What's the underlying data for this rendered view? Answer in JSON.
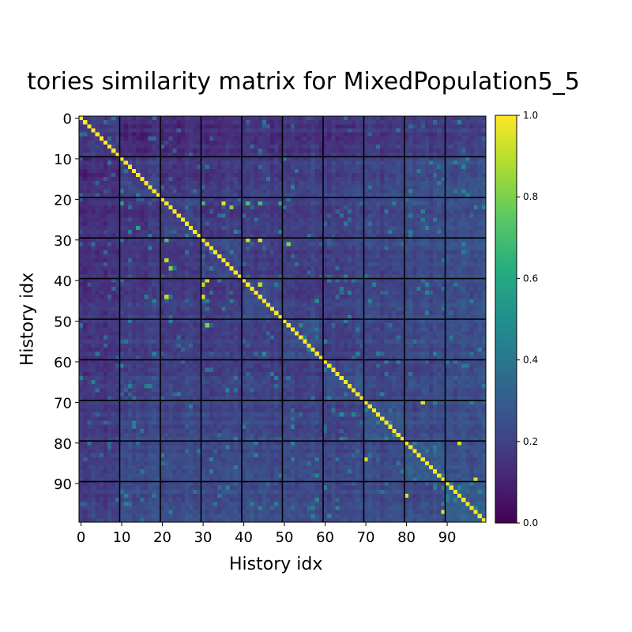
{
  "chart_data": {
    "type": "heatmap",
    "title": "tories similarity matrix for MixedPopulation5_5",
    "xlabel": "History idx",
    "ylabel": "History idx",
    "rows": 100,
    "cols": 100,
    "block_size": 10,
    "x_ticks": [
      0,
      10,
      20,
      30,
      40,
      50,
      60,
      70,
      80,
      90
    ],
    "y_ticks": [
      0,
      10,
      20,
      30,
      40,
      50,
      60,
      70,
      80,
      90
    ],
    "colorbar": {
      "min": 0.0,
      "max": 1.0,
      "ticks": [
        "0.0",
        "0.2",
        "0.4",
        "0.6",
        "0.8",
        "1.0"
      ],
      "colormap": "viridis"
    },
    "diagonal_value": 1.0,
    "typical_offdiagonal_range": [
      0.05,
      0.3
    ],
    "notable_cells": [
      {
        "row": 21,
        "col": 10,
        "value": 0.6
      },
      {
        "row": 21,
        "col": 30,
        "value": 0.7
      },
      {
        "row": 21,
        "col": 35,
        "value": 0.95
      },
      {
        "row": 22,
        "col": 37,
        "value": 0.8
      },
      {
        "row": 21,
        "col": 41,
        "value": 0.7
      },
      {
        "row": 21,
        "col": 44,
        "value": 0.7
      },
      {
        "row": 21,
        "col": 49,
        "value": 0.6
      },
      {
        "row": 27,
        "col": 14,
        "value": 0.6
      },
      {
        "row": 30,
        "col": 21,
        "value": 0.7
      },
      {
        "row": 30,
        "col": 41,
        "value": 0.9
      },
      {
        "row": 30,
        "col": 44,
        "value": 0.95
      },
      {
        "row": 31,
        "col": 51,
        "value": 0.8
      },
      {
        "row": 35,
        "col": 21,
        "value": 0.9
      },
      {
        "row": 37,
        "col": 22,
        "value": 0.8
      },
      {
        "row": 40,
        "col": 31,
        "value": 0.95
      },
      {
        "row": 41,
        "col": 30,
        "value": 0.9
      },
      {
        "row": 41,
        "col": 44,
        "value": 0.9
      },
      {
        "row": 44,
        "col": 21,
        "value": 0.9
      },
      {
        "row": 44,
        "col": 30,
        "value": 0.95
      },
      {
        "row": 45,
        "col": 58,
        "value": 0.5
      },
      {
        "row": 51,
        "col": 31,
        "value": 0.8
      },
      {
        "row": 58,
        "col": 45,
        "value": 0.5
      },
      {
        "row": 70,
        "col": 84,
        "value": 0.95
      },
      {
        "row": 73,
        "col": 64,
        "value": 0.5
      },
      {
        "row": 80,
        "col": 93,
        "value": 0.95
      },
      {
        "row": 84,
        "col": 70,
        "value": 0.95
      },
      {
        "row": 89,
        "col": 97,
        "value": 0.95
      },
      {
        "row": 93,
        "col": 80,
        "value": 0.95
      },
      {
        "row": 97,
        "col": 89,
        "value": 0.95
      }
    ]
  }
}
